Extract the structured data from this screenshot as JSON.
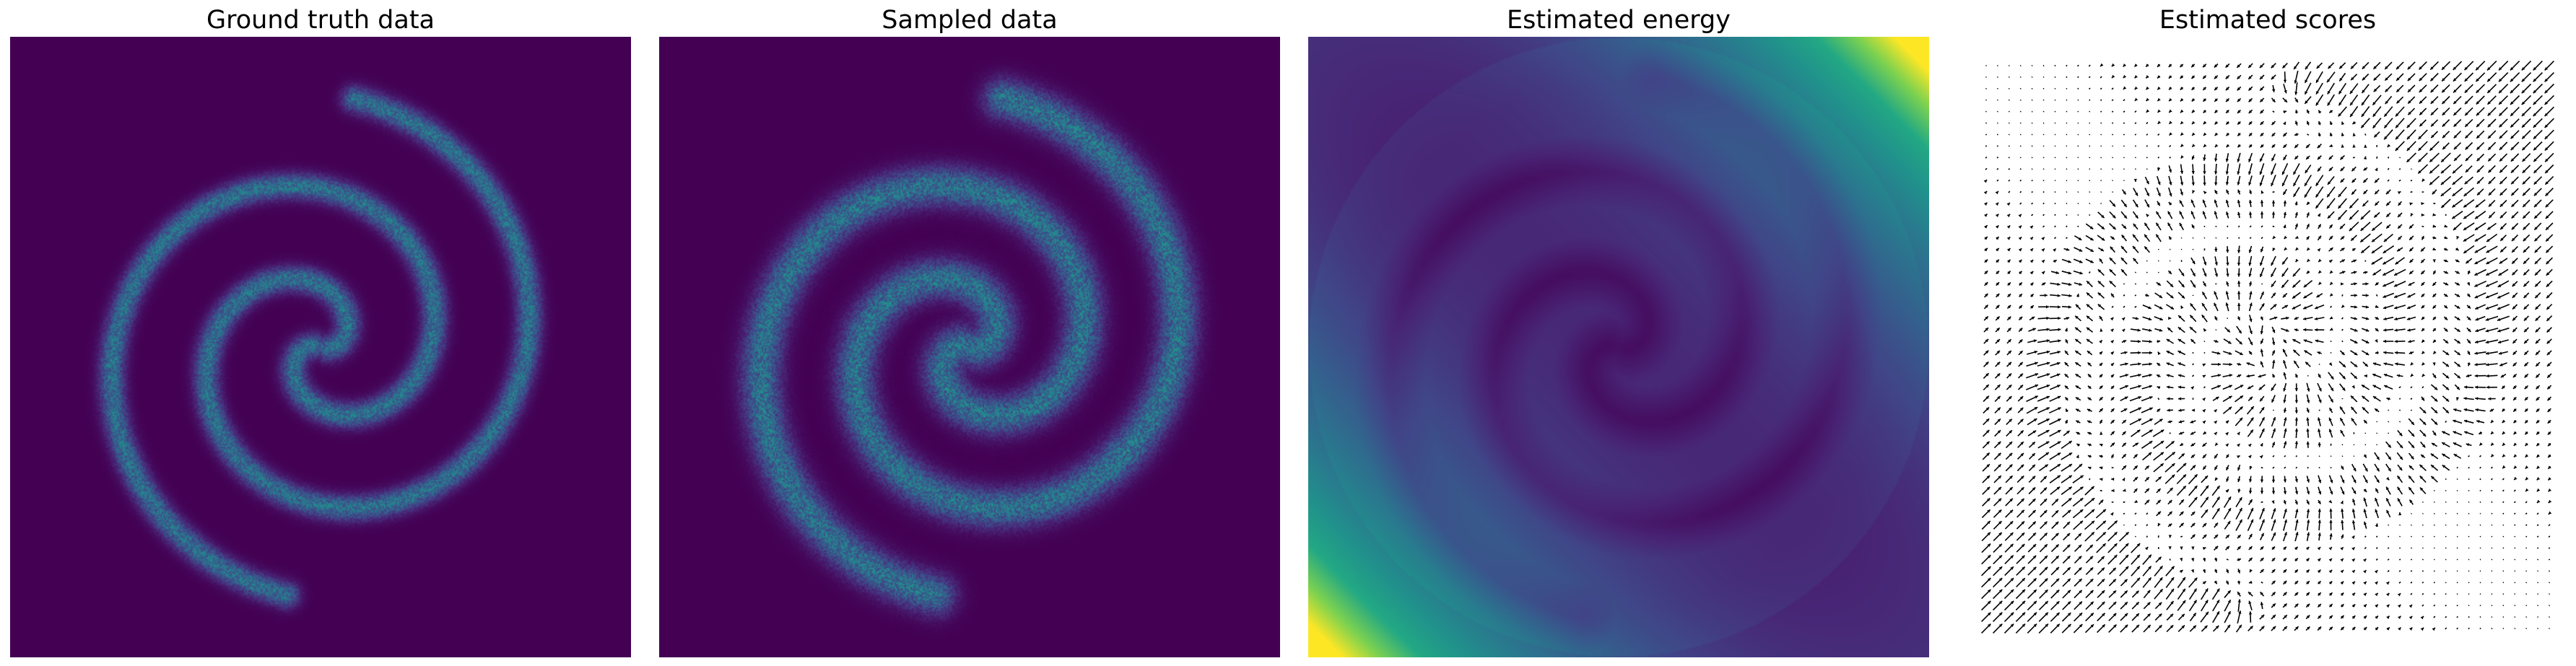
{
  "chart_data": [
    {
      "type": "heatmap",
      "title": "Ground truth data",
      "description_color_map": "viridis",
      "spiral": {
        "arms": 2,
        "turns": 1.6,
        "radius": 1.0
      },
      "axes_visible": false
    },
    {
      "type": "heatmap",
      "title": "Sampled data",
      "description_color_map": "viridis",
      "spiral": {
        "arms": 2,
        "turns": 1.6,
        "radius": 1.0
      },
      "axes_visible": false
    },
    {
      "type": "heatmap",
      "title": "Estimated energy",
      "description_color_map": "viridis",
      "axes_visible": false
    },
    {
      "type": "quiver",
      "title": "Estimated scores",
      "grid": [
        50,
        50
      ],
      "axes_visible": false
    }
  ],
  "colors": {
    "viridis_low": "#440154",
    "viridis_mid": "#21918c",
    "viridis_high": "#fde725",
    "arrow": "#000000"
  }
}
